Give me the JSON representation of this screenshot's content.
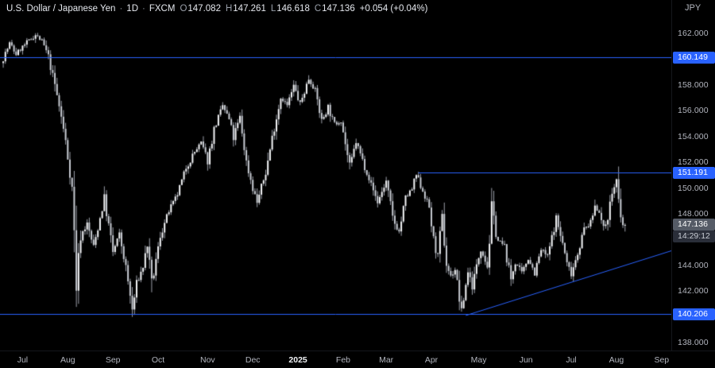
{
  "legend": {
    "title": "U.S. Dollar / Japanese Yen",
    "sep": "·",
    "interval": "1D",
    "exchange": "FXCM",
    "o_label": "O",
    "open": "147.082",
    "h_label": "H",
    "high": "147.261",
    "l_label": "L",
    "low": "146.618",
    "c_label": "C",
    "close": "147.136",
    "change": "+0.054 (+0.04%)"
  },
  "axis": {
    "currency": "JPY"
  },
  "chart_data": {
    "type": "candlestick",
    "symbol": "USD/JPY",
    "interval": "1D",
    "exchange": "FXCM",
    "title": "U.S. Dollar / Japanese Yen · 1D · FXCM",
    "last_bar": {
      "open": 147.082,
      "high": 147.261,
      "low": 146.618,
      "close": 147.136
    },
    "change": 0.054,
    "change_pct": 0.04,
    "ylim": [
      137.38,
      164.6
    ],
    "n_bars": 290,
    "x_slots": 312,
    "vol_base": 0.35,
    "seed": 7,
    "grid": false,
    "anchors": [
      [
        0,
        159.7
      ],
      [
        4,
        161.2
      ],
      [
        7,
        160.4
      ],
      [
        12,
        161.3
      ],
      [
        16,
        161.9
      ],
      [
        19,
        161.4
      ],
      [
        22,
        160.2
      ],
      [
        25,
        158.0
      ],
      [
        28,
        155.5
      ],
      [
        30,
        153.6
      ],
      [
        33,
        150.0
      ],
      [
        34,
        146.5
      ],
      [
        35,
        142.6
      ],
      [
        37,
        146.3
      ],
      [
        40,
        147.2
      ],
      [
        43,
        145.4
      ],
      [
        48,
        149.2
      ],
      [
        52,
        145.0
      ],
      [
        55,
        146.4
      ],
      [
        58,
        143.8
      ],
      [
        61,
        140.5
      ],
      [
        63,
        142.5
      ],
      [
        66,
        143.9
      ],
      [
        68,
        145.6
      ],
      [
        70,
        142.3
      ],
      [
        74,
        146.3
      ],
      [
        78,
        148.2
      ],
      [
        82,
        149.5
      ],
      [
        86,
        151.6
      ],
      [
        90,
        152.8
      ],
      [
        93,
        153.5
      ],
      [
        96,
        152.1
      ],
      [
        99,
        154.5
      ],
      [
        103,
        156.4
      ],
      [
        106,
        155.3
      ],
      [
        108,
        153.9
      ],
      [
        111,
        155.5
      ],
      [
        114,
        152.0
      ],
      [
        117,
        150.0
      ],
      [
        119,
        148.9
      ],
      [
        123,
        151.2
      ],
      [
        126,
        153.9
      ],
      [
        130,
        157.1
      ],
      [
        133,
        156.4
      ],
      [
        136,
        157.9
      ],
      [
        139,
        156.5
      ],
      [
        143,
        158.5
      ],
      [
        146,
        157.6
      ],
      [
        149,
        155.2
      ],
      [
        152,
        156.3
      ],
      [
        155,
        154.9
      ],
      [
        158,
        155.3
      ],
      [
        162,
        151.6
      ],
      [
        165,
        153.6
      ],
      [
        170,
        151.2
      ],
      [
        175,
        148.9
      ],
      [
        179,
        150.5
      ],
      [
        182,
        147.6
      ],
      [
        185,
        146.6
      ],
      [
        188,
        149.2
      ],
      [
        191,
        149.9
      ],
      [
        193,
        151.0
      ],
      [
        196,
        149.8
      ],
      [
        199,
        148.5
      ],
      [
        201,
        145.9
      ],
      [
        203,
        144.7
      ],
      [
        205,
        147.7
      ],
      [
        207,
        144.1
      ],
      [
        209,
        143.1
      ],
      [
        211,
        143.7
      ],
      [
        214,
        140.3
      ],
      [
        217,
        143.6
      ],
      [
        219,
        142.4
      ],
      [
        223,
        145.4
      ],
      [
        226,
        143.9
      ],
      [
        228,
        148.2
      ],
      [
        231,
        145.9
      ],
      [
        234,
        145.5
      ],
      [
        237,
        142.9
      ],
      [
        239,
        144.3
      ],
      [
        242,
        143.3
      ],
      [
        245,
        144.6
      ],
      [
        248,
        143.4
      ],
      [
        251,
        145.2
      ],
      [
        254,
        144.7
      ],
      [
        258,
        147.6
      ],
      [
        261,
        145.7
      ],
      [
        263,
        144.1
      ],
      [
        265,
        143.4
      ],
      [
        268,
        145.0
      ],
      [
        271,
        146.8
      ],
      [
        274,
        147.3
      ],
      [
        276,
        148.6
      ],
      [
        278,
        148.2
      ],
      [
        280,
        146.7
      ],
      [
        282,
        147.8
      ],
      [
        284,
        149.6
      ],
      [
        286,
        150.6
      ],
      [
        287,
        148.6
      ],
      [
        288,
        147.5
      ],
      [
        289,
        147.136
      ]
    ],
    "months": [
      {
        "label": "Jul",
        "bar": 9
      },
      {
        "label": "Aug",
        "bar": 30
      },
      {
        "label": "Sep",
        "bar": 51
      },
      {
        "label": "Oct",
        "bar": 72
      },
      {
        "label": "Nov",
        "bar": 95
      },
      {
        "label": "Dec",
        "bar": 116
      },
      {
        "label": "2025",
        "bar": 137,
        "major": true
      },
      {
        "label": "Feb",
        "bar": 158
      },
      {
        "label": "Mar",
        "bar": 178
      },
      {
        "label": "Apr",
        "bar": 199
      },
      {
        "label": "May",
        "bar": 221
      },
      {
        "label": "Jun",
        "bar": 243
      },
      {
        "label": "Jul",
        "bar": 264
      },
      {
        "label": "Aug",
        "bar": 285
      },
      {
        "label": "Sep",
        "bar": 306
      }
    ],
    "y_ticks": [
      "162.000",
      "160.000",
      "158.000",
      "156.000",
      "154.000",
      "152.000",
      "150.000",
      "148.000",
      "146.000",
      "144.000",
      "142.000",
      "140.000",
      "138.000"
    ],
    "levels": [
      {
        "label": "160.149",
        "price": 160.149,
        "full": true
      },
      {
        "label": "151.191",
        "price": 151.191,
        "full": false,
        "from_bar": 193
      },
      {
        "label": "140.206",
        "price": 140.206,
        "full": true
      }
    ],
    "trendline": {
      "from": [
        215,
        140.1
      ],
      "to": [
        311,
        145.15
      ]
    },
    "last_price": {
      "label": "147.136",
      "price": 147.136,
      "countdown": "14:29:12"
    },
    "colors": {
      "bg": "#000000",
      "accent": "#2962ff",
      "candle_up": "#f4f5f7",
      "candle_down": "#c6cad1",
      "wick": "#9a9ea8",
      "axis_text": "#b2b5be",
      "label_text": "#ffffff",
      "price_tag_bg": "#555b66",
      "countdown_bg": "#2a2e39"
    }
  }
}
